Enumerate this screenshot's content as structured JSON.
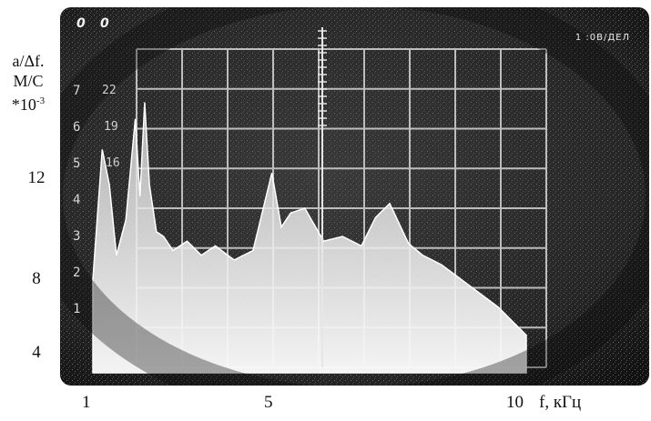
{
  "chart_data": {
    "type": "area",
    "title": "",
    "ylabel": [
      "a/Δf.",
      "M/C",
      "*10",
      "-3"
    ],
    "xlabel": "f, кГц",
    "y_ticks": [
      "12",
      "8",
      "4"
    ],
    "x_ticks": [
      "1",
      "5",
      "10"
    ],
    "xlim": [
      1,
      10.2
    ],
    "ylim": [
      2,
      16
    ],
    "grid": true,
    "screen_labels": {
      "channels": [
        "0",
        "0"
      ],
      "scale_readout": "1 :0В/ДЕЛ",
      "inner_ticks": [
        "7",
        "6",
        "5",
        "4",
        "3",
        "2",
        "1"
      ],
      "inner_ticks2": [
        "22",
        "19",
        "16"
      ]
    },
    "series": [
      {
        "x": [
          1.0,
          1.2,
          1.35,
          1.5,
          1.7,
          1.9,
          2.0,
          2.1,
          2.2,
          2.35,
          2.5,
          2.7,
          3.0,
          3.3,
          3.6,
          4.0,
          4.4,
          4.8,
          5.0,
          5.2,
          5.5,
          5.9,
          6.3,
          6.7,
          7.0,
          7.3,
          7.7,
          8.0,
          8.4,
          8.8,
          9.2,
          9.6,
          10.0,
          10.2
        ],
        "y": [
          6.0,
          11.5,
          10.0,
          7.0,
          8.5,
          12.8,
          9.5,
          13.5,
          10.0,
          8.0,
          7.8,
          7.2,
          7.6,
          7.0,
          7.4,
          6.8,
          7.2,
          10.5,
          8.2,
          8.8,
          9.0,
          7.6,
          7.8,
          7.4,
          8.6,
          9.2,
          7.5,
          7.0,
          6.6,
          6.0,
          5.4,
          4.8,
          4.0,
          3.6
        ]
      }
    ]
  }
}
